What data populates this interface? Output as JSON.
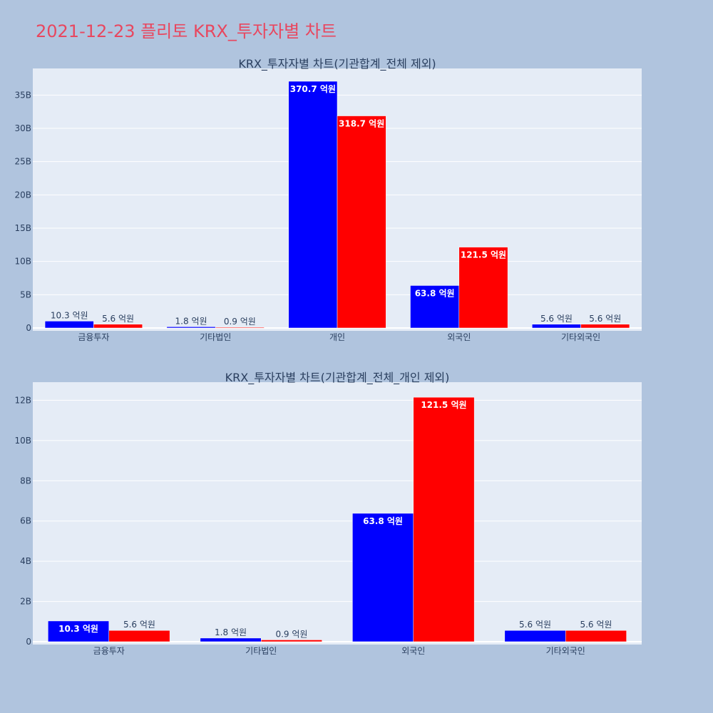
{
  "page": {
    "title": "2021-12-23 플리토 KRX_투자자별 차트",
    "background": "#b0c4de",
    "title_color": "#e8475f"
  },
  "colors": {
    "series1": "#0000ff",
    "series2": "#ff0000",
    "plot_bg": "#e5ecf6",
    "text": "#2a3f5f"
  },
  "chart_data": [
    {
      "type": "bar",
      "title": "KRX_투자자별 차트(기관합계_전체 제외)",
      "categories": [
        "금융투자",
        "기타법인",
        "개인",
        "외국인",
        "기타외국인"
      ],
      "series": [
        {
          "color": "#0000ff",
          "values": [
            1030000000,
            180000000,
            37070000000,
            6380000000,
            560000000
          ],
          "labels": [
            "10.3 억원",
            "1.8 억원",
            "370.7 억원",
            "63.8 억원",
            "5.6 억원"
          ]
        },
        {
          "color": "#ff0000",
          "values": [
            560000000,
            90000000,
            31870000000,
            12150000000,
            560000000
          ],
          "labels": [
            "5.6 억원",
            "0.9 억원",
            "318.7 억원",
            "121.5 억원",
            "5.6 억원"
          ]
        }
      ],
      "ylim": [
        0,
        39000000000
      ],
      "yticks": [
        0,
        5000000000,
        10000000000,
        15000000000,
        20000000000,
        25000000000,
        30000000000,
        35000000000
      ],
      "ytick_labels": [
        "0",
        "5B",
        "10B",
        "15B",
        "20B",
        "25B",
        "30B",
        "35B"
      ],
      "grid": true,
      "xlabel": "",
      "ylabel": ""
    },
    {
      "type": "bar",
      "title": "KRX_투자자별 차트(기관합계_전체_개인 제외)",
      "categories": [
        "금융투자",
        "기타법인",
        "외국인",
        "기타외국인"
      ],
      "series": [
        {
          "color": "#0000ff",
          "values": [
            1030000000,
            180000000,
            6380000000,
            560000000
          ],
          "labels": [
            "10.3 억원",
            "1.8 억원",
            "63.8 억원",
            "5.6 억원"
          ]
        },
        {
          "color": "#ff0000",
          "values": [
            560000000,
            90000000,
            12150000000,
            560000000
          ],
          "labels": [
            "5.6 억원",
            "0.9 억원",
            "121.5 억원",
            "5.6 억원"
          ]
        }
      ],
      "ylim": [
        0,
        12900000000
      ],
      "yticks": [
        0,
        2000000000,
        4000000000,
        6000000000,
        8000000000,
        10000000000,
        12000000000
      ],
      "ytick_labels": [
        "0",
        "2B",
        "4B",
        "6B",
        "8B",
        "10B",
        "12B"
      ],
      "grid": true,
      "xlabel": "",
      "ylabel": ""
    }
  ]
}
